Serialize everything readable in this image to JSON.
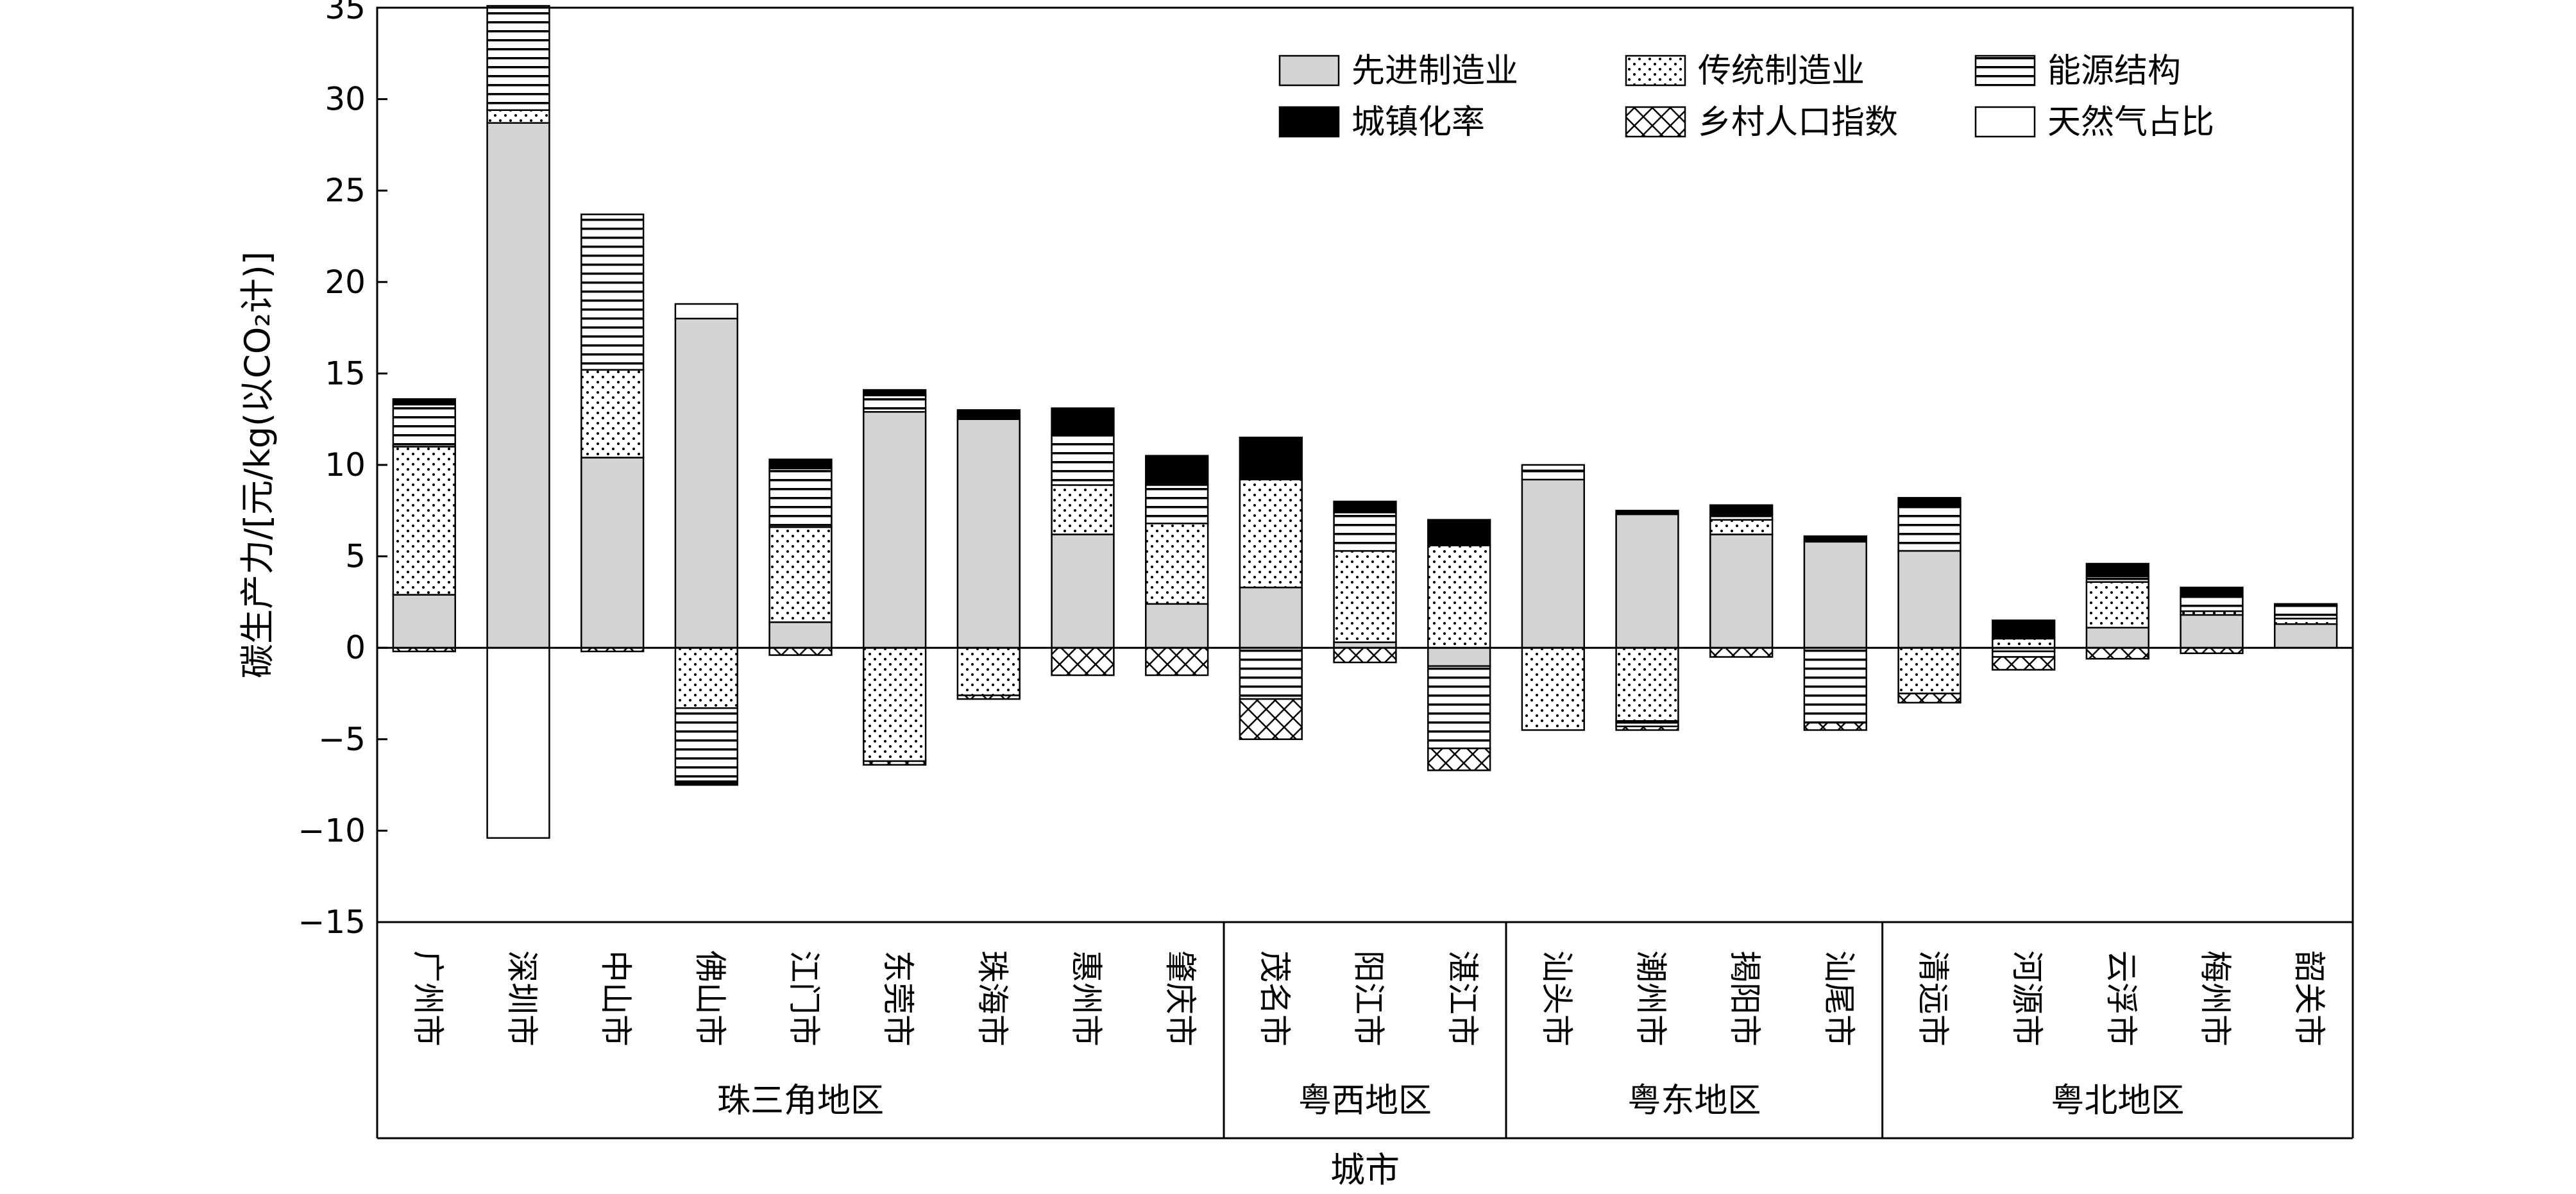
{
  "chart_data": {
    "type": "bar",
    "stacked": true,
    "title": "",
    "xlabel": "城市",
    "ylabel": "碳生产力/[元/kg(以CO₂计)]",
    "ylim": [
      -15,
      35
    ],
    "yticks": [
      -15,
      -10,
      -5,
      0,
      5,
      10,
      15,
      20,
      25,
      30,
      35
    ],
    "grid": false,
    "legend_position": "top-right",
    "categories": [
      "广州市",
      "深圳市",
      "中山市",
      "佛山市",
      "江门市",
      "东莞市",
      "珠海市",
      "惠州市",
      "肇庆市",
      "茂名市",
      "阳江市",
      "湛江市",
      "汕头市",
      "潮州市",
      "揭阳市",
      "汕尾市",
      "清远市",
      "河源市",
      "云浮市",
      "梅州市",
      "韶关市"
    ],
    "regions": [
      {
        "name": "珠三角地区",
        "count": 9
      },
      {
        "name": "粤西地区",
        "count": 3
      },
      {
        "name": "粤东地区",
        "count": 4
      },
      {
        "name": "粤北地区",
        "count": 5
      }
    ],
    "series": [
      {
        "name": "先进制造业",
        "pattern": "gray",
        "values": [
          2.9,
          28.7,
          10.4,
          18.0,
          1.4,
          12.9,
          12.5,
          6.2,
          2.4,
          3.3,
          0.3,
          -1.0,
          9.2,
          7.3,
          6.2,
          5.8,
          5.3,
          -0.2,
          1.1,
          1.8,
          1.3
        ]
      },
      {
        "name": "传统制造业",
        "pattern": "dots",
        "values": [
          8.1,
          0.7,
          4.8,
          -3.3,
          5.2,
          -6.2,
          -2.6,
          2.7,
          4.4,
          5.9,
          5.0,
          5.6,
          -4.5,
          -4.0,
          0.8,
          0.0,
          -2.5,
          0.5,
          2.5,
          0.2,
          0.3
        ]
      },
      {
        "name": "能源结构",
        "pattern": "hlines",
        "values": [
          2.3,
          5.7,
          8.5,
          -4.0,
          3.2,
          0.9,
          0.2,
          2.7,
          2.1,
          -2.8,
          2.1,
          -4.5,
          0.5,
          -0.3,
          0.3,
          -4.1,
          2.5,
          -0.3,
          0.3,
          0.8,
          0.7
        ]
      },
      {
        "name": "城镇化率",
        "pattern": "solid",
        "values": [
          0.3,
          0.0,
          0.0,
          -0.2,
          0.5,
          0.3,
          0.3,
          1.5,
          1.6,
          2.3,
          0.6,
          1.4,
          0.0,
          0.2,
          0.5,
          0.3,
          0.4,
          1.0,
          0.7,
          0.5,
          0.1
        ]
      },
      {
        "name": "乡村人口指数",
        "pattern": "cross",
        "values": [
          -0.2,
          0.0,
          -0.2,
          0.0,
          -0.4,
          -0.2,
          -0.2,
          -1.5,
          -1.5,
          -2.2,
          -0.8,
          -1.2,
          0.0,
          -0.2,
          -0.5,
          -0.4,
          -0.5,
          -0.7,
          -0.6,
          -0.3,
          0.0
        ]
      },
      {
        "name": "天然气占比",
        "pattern": "white",
        "values": [
          0.0,
          -10.4,
          0.0,
          0.8,
          0.0,
          0.0,
          0.0,
          0.0,
          0.0,
          0.0,
          0.0,
          0.0,
          0.3,
          0.0,
          0.0,
          0.0,
          0.0,
          0.0,
          0.0,
          0.0,
          0.0
        ]
      }
    ]
  }
}
